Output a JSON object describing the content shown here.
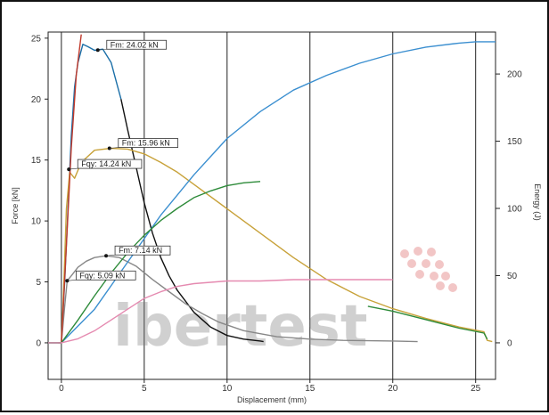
{
  "chart_data": {
    "type": "line",
    "xlabel": "Displacement (mm)",
    "ylabel": "Force [kN]",
    "y2label": "Energy (J)",
    "xlim": [
      -0.8,
      26.2
    ],
    "ylim": [
      -3,
      25.5
    ],
    "y2lim": [
      -27.2,
      231.2
    ],
    "x_ticks": [
      "0",
      "5",
      "10",
      "15",
      "20",
      "25"
    ],
    "y_ticks": [
      "0",
      "5",
      "10",
      "15",
      "20",
      "25"
    ],
    "y2_ticks": [
      "0",
      "50",
      "100",
      "150",
      "200"
    ],
    "grid": "vertical",
    "watermark": "ibertest",
    "annotations": [
      {
        "label": "Fm: 24.02 kN",
        "x": 2.2,
        "y": 24.02
      },
      {
        "label": "Fm: 15.96 kN",
        "x": 2.9,
        "y": 15.96
      },
      {
        "label": "Fqy: 14.24 kN",
        "x": 0.45,
        "y": 14.24
      },
      {
        "label": "Fm: 7.14 kN",
        "x": 2.7,
        "y": 7.14
      },
      {
        "label": "Fqy: 5.09 kN",
        "x": 0.35,
        "y": 5.09
      }
    ],
    "series": [
      {
        "axis": "left",
        "color": "#1b6fa8",
        "points": [
          [
            -0.8,
            0
          ],
          [
            0,
            0
          ],
          [
            0.2,
            5
          ],
          [
            0.4,
            11
          ],
          [
            0.6,
            17
          ],
          [
            0.8,
            21
          ],
          [
            1.0,
            23
          ],
          [
            1.3,
            24.5
          ],
          [
            1.6,
            24.3
          ],
          [
            2.0,
            24.0
          ],
          [
            2.5,
            24.1
          ],
          [
            3.0,
            23.0
          ],
          [
            3.3,
            21.5
          ],
          [
            3.6,
            20.0
          ]
        ]
      },
      {
        "axis": "left",
        "color": "#111111",
        "points": [
          [
            3.6,
            20.0
          ],
          [
            4.0,
            17.5
          ],
          [
            4.5,
            14.5
          ],
          [
            5.0,
            11.5
          ],
          [
            5.5,
            9.0
          ],
          [
            6.0,
            7.0
          ],
          [
            6.5,
            5.5
          ],
          [
            7.0,
            4.3
          ],
          [
            8.0,
            2.5
          ],
          [
            9.0,
            1.3
          ],
          [
            10.0,
            0.6
          ],
          [
            11.0,
            0.3
          ],
          [
            12.0,
            0.15
          ],
          [
            12.2,
            0.1
          ]
        ]
      },
      {
        "axis": "left",
        "color": "#c8a23a",
        "points": [
          [
            -0.8,
            0
          ],
          [
            0,
            0
          ],
          [
            0.15,
            5
          ],
          [
            0.3,
            11
          ],
          [
            0.5,
            14.0
          ],
          [
            0.8,
            13.5
          ],
          [
            1.2,
            14.8
          ],
          [
            2.0,
            15.8
          ],
          [
            3.0,
            15.96
          ],
          [
            4.0,
            15.9
          ],
          [
            5.0,
            15.5
          ],
          [
            6.0,
            14.8
          ],
          [
            7.0,
            14.0
          ],
          [
            8.0,
            13.0
          ],
          [
            10.0,
            11.0
          ],
          [
            12.0,
            9.0
          ],
          [
            14.0,
            7.0
          ],
          [
            16.0,
            5.2
          ],
          [
            18.0,
            3.8
          ],
          [
            20.0,
            2.8
          ],
          [
            22.0,
            2.0
          ],
          [
            24.0,
            1.3
          ],
          [
            25.5,
            0.9
          ],
          [
            25.7,
            0.2
          ],
          [
            26.0,
            0.1
          ]
        ]
      },
      {
        "axis": "left",
        "color": "#2e8b3a",
        "points": [
          [
            18.5,
            3.0
          ],
          [
            20.0,
            2.6
          ],
          [
            22.0,
            1.9
          ],
          [
            24.0,
            1.2
          ],
          [
            25.5,
            0.8
          ],
          [
            25.7,
            0.3
          ]
        ]
      },
      {
        "axis": "left",
        "color": "#888888",
        "points": [
          [
            -0.8,
            0
          ],
          [
            0,
            0
          ],
          [
            0.2,
            3
          ],
          [
            0.35,
            5.09
          ],
          [
            0.6,
            5.5
          ],
          [
            1.0,
            6.2
          ],
          [
            1.5,
            6.7
          ],
          [
            2.0,
            7.0
          ],
          [
            2.7,
            7.14
          ],
          [
            3.5,
            7.0
          ],
          [
            4.5,
            6.3
          ],
          [
            5.5,
            5.2
          ],
          [
            6.5,
            4.2
          ],
          [
            7.5,
            3.2
          ],
          [
            8.5,
            2.4
          ],
          [
            9.5,
            1.7
          ],
          [
            11.0,
            1.0
          ],
          [
            13.0,
            0.5
          ],
          [
            15.0,
            0.3
          ],
          [
            17.0,
            0.2
          ],
          [
            20.0,
            0.15
          ],
          [
            21.5,
            0.1
          ]
        ]
      },
      {
        "axis": "left",
        "color": "#c0392b",
        "points": [
          [
            -0.2,
            0
          ],
          [
            0,
            0
          ],
          [
            0.3,
            8
          ],
          [
            0.6,
            16
          ],
          [
            0.9,
            22
          ],
          [
            1.2,
            25.3
          ]
        ]
      },
      {
        "axis": "right",
        "color": "#3b8fd0",
        "points": [
          [
            -0.8,
            0
          ],
          [
            0,
            0
          ],
          [
            2,
            25
          ],
          [
            4,
            60
          ],
          [
            6,
            95
          ],
          [
            8,
            125
          ],
          [
            10,
            152
          ],
          [
            12,
            172
          ],
          [
            14,
            188
          ],
          [
            16,
            199
          ],
          [
            18,
            208
          ],
          [
            20,
            215
          ],
          [
            22,
            220
          ],
          [
            24,
            223
          ],
          [
            25,
            224
          ],
          [
            26.2,
            224
          ]
        ]
      },
      {
        "axis": "right",
        "color": "#2e8b3a",
        "points": [
          [
            -0.8,
            0
          ],
          [
            0,
            0
          ],
          [
            1,
            17
          ],
          [
            2,
            35
          ],
          [
            3,
            52
          ],
          [
            4,
            67
          ],
          [
            5,
            80
          ],
          [
            6,
            91
          ],
          [
            7,
            100
          ],
          [
            8,
            108
          ],
          [
            9,
            113
          ],
          [
            10,
            117
          ],
          [
            11,
            119
          ],
          [
            12,
            120
          ]
        ]
      },
      {
        "axis": "right",
        "color": "#e58ab0",
        "points": [
          [
            -0.8,
            0
          ],
          [
            0,
            0
          ],
          [
            1,
            3
          ],
          [
            2,
            9
          ],
          [
            3,
            17
          ],
          [
            4,
            25
          ],
          [
            5,
            33
          ],
          [
            6,
            38
          ],
          [
            7,
            42
          ],
          [
            8,
            44
          ],
          [
            9,
            45
          ],
          [
            10,
            46
          ],
          [
            12,
            46
          ],
          [
            14,
            47
          ],
          [
            16,
            47
          ],
          [
            18,
            47
          ],
          [
            20,
            47
          ]
        ]
      }
    ]
  }
}
